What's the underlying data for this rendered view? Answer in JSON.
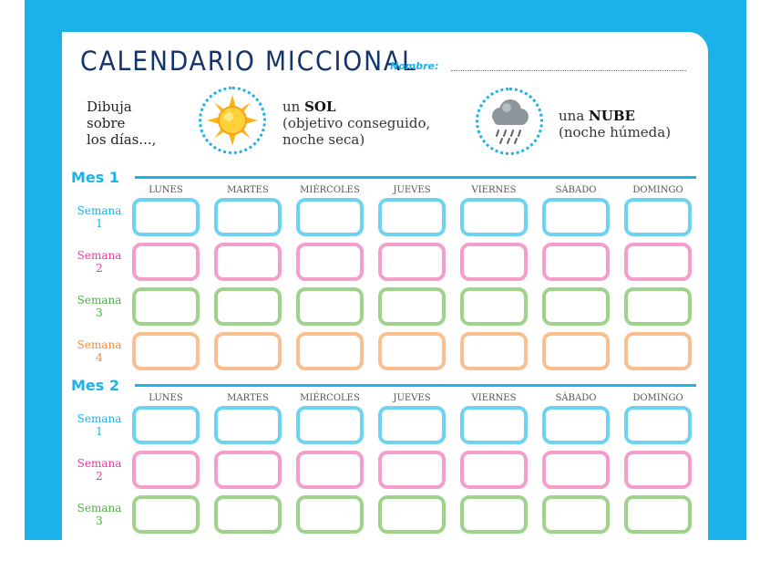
{
  "header": {
    "title": "CALENDARIO MICCIONAL",
    "name_label": "Nombre:"
  },
  "intro": {
    "line1": "Dibuja",
    "line2": "sobre",
    "line3": "los días...,"
  },
  "legend": {
    "sun_prefix": "un ",
    "sun_word": "SOL",
    "sun_line2": "(objetivo conseguido,",
    "sun_line3": "noche seca)",
    "cloud_prefix": "una ",
    "cloud_word": "NUBE",
    "cloud_line2": "(noche húmeda)",
    "sun_icon": "sun-icon",
    "cloud_icon": "rain-cloud-icon"
  },
  "days": [
    "LUNES",
    "MARTES",
    "MIÉRCOLES",
    "JUEVES",
    "VIERNES",
    "SÁBADO",
    "DOMINGO"
  ],
  "months": [
    {
      "label": "Mes 1",
      "weeks": [
        {
          "label": "Semana",
          "num": "1",
          "color": "#6ed3f1",
          "text_color": "#1bb2ea"
        },
        {
          "label": "Semana",
          "num": "2",
          "color": "#f49ecb",
          "text_color": "#e8409a"
        },
        {
          "label": "Semana",
          "num": "3",
          "color": "#9fd38c",
          "text_color": "#4cb045"
        },
        {
          "label": "Semana",
          "num": "4",
          "color": "#f9bf91",
          "text_color": "#f08d3c"
        }
      ]
    },
    {
      "label": "Mes 2",
      "weeks": [
        {
          "label": "Semana",
          "num": "1",
          "color": "#6ed3f1",
          "text_color": "#1bb2ea"
        },
        {
          "label": "Semana",
          "num": "2",
          "color": "#f49ecb",
          "text_color": "#e8409a"
        },
        {
          "label": "Semana",
          "num": "3",
          "color": "#9fd38c",
          "text_color": "#4cb045"
        }
      ]
    }
  ],
  "colors": {
    "frame": "#1bb2ea",
    "title": "#15346b"
  }
}
